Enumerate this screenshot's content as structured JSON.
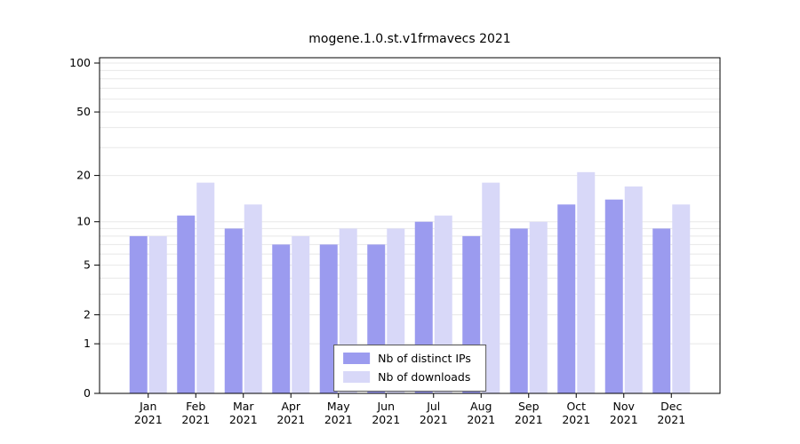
{
  "chart_data": {
    "type": "bar",
    "title": "mogene.1.0.st.v1frmavecs 2021",
    "categories": [
      "Jan",
      "Feb",
      "Mar",
      "Apr",
      "May",
      "Jun",
      "Jul",
      "Aug",
      "Sep",
      "Oct",
      "Nov",
      "Dec"
    ],
    "year_label": "2021",
    "series": [
      {
        "name": "Nb of distinct IPs",
        "color": "#9b9bef",
        "values": [
          8,
          11,
          9,
          7,
          7,
          7,
          10,
          8,
          9,
          13,
          14,
          9
        ]
      },
      {
        "name": "Nb of downloads",
        "color": "#d8d8f8",
        "values": [
          8,
          18,
          13,
          8,
          9,
          9,
          11,
          18,
          10,
          21,
          17,
          13
        ]
      }
    ],
    "yticks": [
      0,
      1,
      2,
      5,
      10,
      20,
      50,
      100
    ],
    "gridlines": [
      1,
      2,
      3,
      4,
      5,
      6,
      7,
      8,
      9,
      10,
      20,
      30,
      40,
      50,
      60,
      70,
      80,
      90,
      100
    ],
    "scale": "log1p",
    "ylim": [
      0,
      110
    ],
    "grid": true,
    "legend_position": "bottom-center"
  },
  "colors": {
    "grid": "#e8e8e8",
    "axis": "#000000",
    "background": "#ffffff"
  }
}
